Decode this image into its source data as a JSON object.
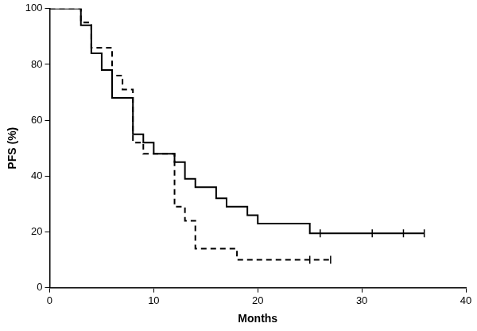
{
  "chart_data": {
    "type": "line",
    "x_label": "Months",
    "y_label": "PFS (%)",
    "xlim": [
      0,
      40
    ],
    "xticks": [
      0,
      10,
      20,
      30,
      40
    ],
    "ylim": [
      0,
      100
    ],
    "yticks": [
      0,
      20,
      40,
      60,
      80,
      100
    ],
    "grid": false,
    "series": [
      {
        "color": "#000000",
        "line_style": "solid",
        "marker": "|",
        "x": [
          0,
          3,
          4,
          5,
          6,
          8,
          9,
          10,
          12,
          13,
          14,
          16,
          17,
          19,
          20,
          25,
          36
        ],
        "values": [
          100,
          94,
          84,
          78,
          68,
          55,
          52,
          48,
          45,
          39,
          36,
          32,
          29,
          26,
          23,
          19.5,
          19.5
        ],
        "censored": {
          "x": [
            26,
            31,
            34,
            36
          ],
          "values": [
            19.5,
            19.5,
            19.5,
            19.5
          ]
        }
      },
      {
        "color": "#000000",
        "line_style": "dashed",
        "marker": "|",
        "x": [
          0,
          3,
          4,
          6,
          7,
          8,
          9,
          12,
          13,
          14,
          18,
          27
        ],
        "values": [
          100,
          95,
          86,
          76,
          71,
          52,
          48,
          29,
          24,
          14,
          10,
          10
        ],
        "censored": {
          "x": [
            25,
            27
          ],
          "values": [
            10,
            10
          ]
        }
      }
    ]
  }
}
